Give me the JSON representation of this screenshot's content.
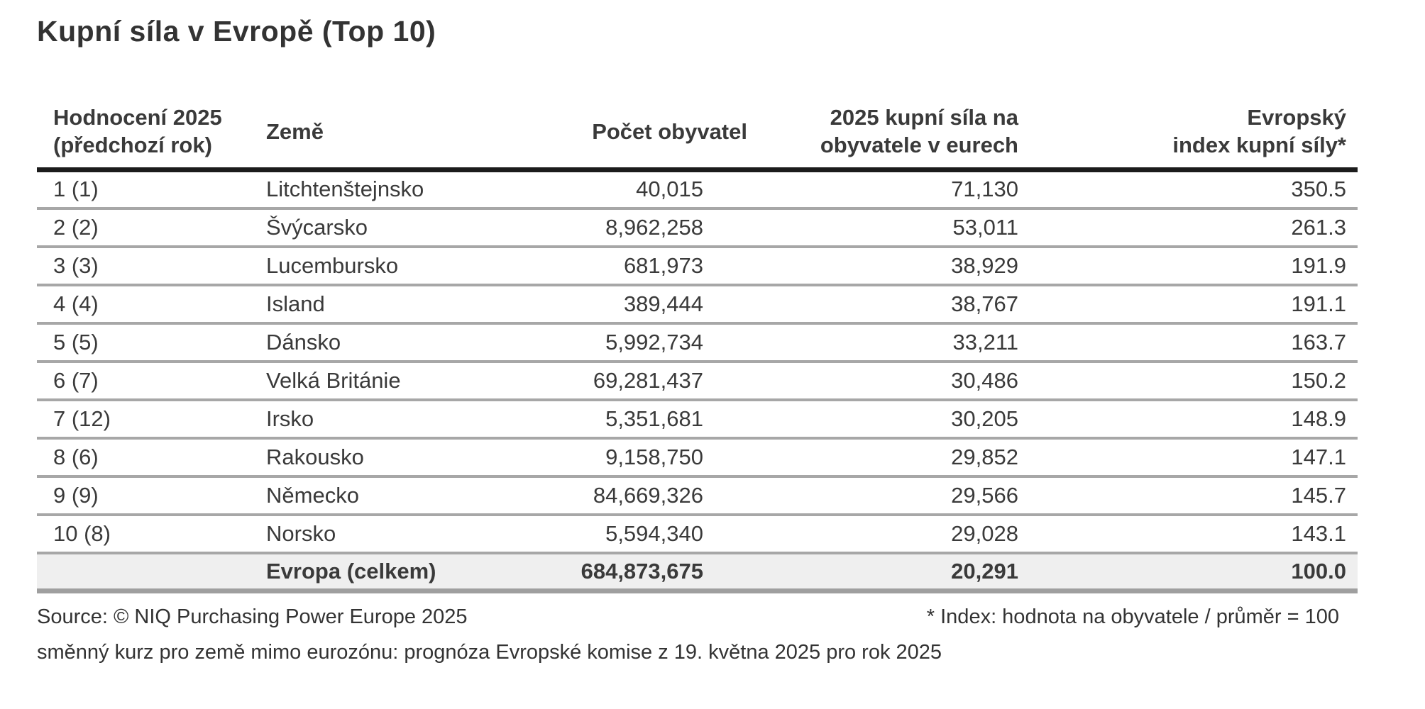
{
  "title": "Kupní síla v Evropě (Top 10)",
  "colors": {
    "text": "#3a3a3a",
    "header_rule": "#1c1c1c",
    "row_separator": "#a7a7a7",
    "bottom_rule": "#9f9f9f",
    "total_row_bg": "#efefef"
  },
  "columns": {
    "rank": {
      "line1": "Hodnocení 2025",
      "line2": "(předchozí rok)"
    },
    "country": {
      "line1": "Země",
      "line2": ""
    },
    "population": {
      "line1": "Počet obyvatel",
      "line2": ""
    },
    "power": {
      "line1": "2025 kupní síla na",
      "line2": "obyvatele v eurech"
    },
    "index": {
      "line1": "Evropský",
      "line2": "index kupní síly*"
    }
  },
  "table": {
    "rows": [
      {
        "rank": "1 (1)",
        "country": "Litchtenštejnsko",
        "population": "40,015",
        "power": "71,130",
        "index": "350.5"
      },
      {
        "rank": "2 (2)",
        "country": "Švýcarsko",
        "population": "8,962,258",
        "power": "53,011",
        "index": "261.3"
      },
      {
        "rank": "3 (3)",
        "country": "Lucembursko",
        "population": "681,973",
        "power": "38,929",
        "index": "191.9"
      },
      {
        "rank": "4 (4)",
        "country": "Island",
        "population": "389,444",
        "power": "38,767",
        "index": "191.1"
      },
      {
        "rank": "5 (5)",
        "country": "Dánsko",
        "population": "5,992,734",
        "power": "33,211",
        "index": "163.7"
      },
      {
        "rank": "6 (7)",
        "country": "Velká Británie",
        "population": "69,281,437",
        "power": "30,486",
        "index": "150.2"
      },
      {
        "rank": "7 (12)",
        "country": "Irsko",
        "population": "5,351,681",
        "power": "30,205",
        "index": "148.9"
      },
      {
        "rank": "8 (6)",
        "country": "Rakousko",
        "population": "9,158,750",
        "power": "29,852",
        "index": "147.1"
      },
      {
        "rank": "9 (9)",
        "country": "Německo",
        "population": "84,669,326",
        "power": "29,566",
        "index": "145.7"
      },
      {
        "rank": "10 (8)",
        "country": "Norsko",
        "population": "5,594,340",
        "power": "29,028",
        "index": "143.1"
      }
    ],
    "total": {
      "rank": "",
      "country": "Evropa (celkem)",
      "population": "684,873,675",
      "power": "20,291",
      "index": "100.0"
    }
  },
  "footer": {
    "source": "Source: © NIQ Purchasing Power Europe 2025",
    "index_note": "* Index: hodnota na obyvatele / průměr = 100",
    "exchange_note": "směnný kurz pro země mimo eurozónu: prognóza Evropské komise z 19. května 2025 pro rok 2025"
  },
  "chart_data": {
    "type": "table",
    "title": "Kupní síla v Evropě (Top 10)",
    "columns": [
      "Hodnocení 2025 (předchozí rok)",
      "Země",
      "Počet obyvatel",
      "2025 kupní síla na obyvatele v eurech",
      "Evropský index kupní síly*"
    ],
    "rows": [
      [
        "1 (1)",
        "Litchtenštejnsko",
        40015,
        71130,
        350.5
      ],
      [
        "2 (2)",
        "Švýcarsko",
        8962258,
        53011,
        261.3
      ],
      [
        "3 (3)",
        "Lucembursko",
        681973,
        38929,
        191.9
      ],
      [
        "4 (4)",
        "Island",
        389444,
        38767,
        191.1
      ],
      [
        "5 (5)",
        "Dánsko",
        5992734,
        33211,
        163.7
      ],
      [
        "6 (7)",
        "Velká Británie",
        69281437,
        30486,
        150.2
      ],
      [
        "7 (12)",
        "Irsko",
        5351681,
        30205,
        148.9
      ],
      [
        "8 (6)",
        "Rakousko",
        9158750,
        29852,
        147.1
      ],
      [
        "9 (9)",
        "Německo",
        84669326,
        29566,
        145.7
      ],
      [
        "10 (8)",
        "Norsko",
        5594340,
        29028,
        143.1
      ]
    ],
    "total_row": [
      "",
      "Evropa (celkem)",
      684873675,
      20291,
      100.0
    ],
    "notes": [
      "Source: © NIQ Purchasing Power Europe 2025",
      "* Index: hodnota na obyvatele / průměr = 100",
      "směnný kurz pro země mimo eurozónu: prognóza Evropské komise z 19. května 2025 pro rok 2025"
    ]
  }
}
